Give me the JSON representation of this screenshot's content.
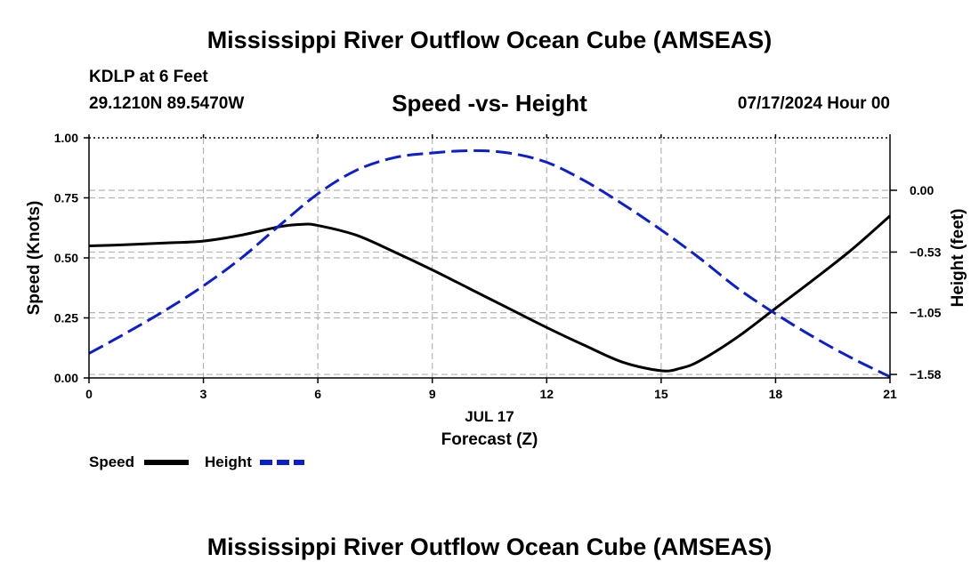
{
  "header": {
    "title": "Mississippi River Outflow Ocean Cube (AMSEAS)",
    "station": "KDLP at 6 Feet",
    "coords": "29.1210N  89.5470W",
    "subtitle": "Speed -vs- Height",
    "datetime": "07/17/2024 Hour 00",
    "bottom_title": "Mississippi River Outflow Ocean Cube (AMSEAS)"
  },
  "chart_data": {
    "type": "line",
    "title": "Speed -vs- Height",
    "xlabel": "Forecast (Z)",
    "xdate_label": "JUL 17",
    "ylabel": "Speed (Knots)",
    "y2label": "Height (feet)",
    "xlim": [
      0,
      21
    ],
    "ylim": [
      0,
      1
    ],
    "y2lim": [
      -1.61,
      0.45
    ],
    "x_ticks": [
      "0",
      "3",
      "6",
      "9",
      "12",
      "15",
      "18",
      "21"
    ],
    "y_ticks": [
      {
        "value": 0,
        "label": "0.00"
      },
      {
        "value": 0.25,
        "label": "0.25"
      },
      {
        "value": 0.5,
        "label": "0.50"
      },
      {
        "value": 0.75,
        "label": "0.75"
      },
      {
        "value": 1,
        "label": "1.00"
      }
    ],
    "y2_ticks": [
      {
        "value": 0,
        "label": "0.00"
      },
      {
        "value": -0.53,
        "label": "−0.53"
      },
      {
        "value": -1.05,
        "label": "−1.05"
      },
      {
        "value": -1.58,
        "label": "−1.58"
      }
    ],
    "grid": true,
    "series": [
      {
        "name": "Speed",
        "axis": "left",
        "color": "#000000",
        "dash": "solid",
        "x": [
          0,
          1,
          2,
          3,
          4,
          5,
          5.6,
          6,
          7,
          8,
          9,
          10,
          11,
          12,
          13,
          14,
          15,
          15.5,
          16,
          17,
          18,
          19,
          20,
          21
        ],
        "y": [
          0.55,
          0.555,
          0.562,
          0.57,
          0.595,
          0.63,
          0.64,
          0.635,
          0.595,
          0.525,
          0.45,
          0.37,
          0.29,
          0.21,
          0.135,
          0.065,
          0.03,
          0.04,
          0.07,
          0.17,
          0.29,
          0.41,
          0.535,
          0.675
        ]
      },
      {
        "name": "Height",
        "axis": "right",
        "color": "#0b1fd1",
        "dash": "dashed",
        "x": [
          0,
          1,
          2,
          3,
          4,
          5,
          6,
          7,
          8,
          9,
          10,
          11,
          12,
          13,
          14,
          15,
          16,
          17,
          18,
          19,
          20,
          21
        ],
        "y": [
          -1.4,
          -1.22,
          -1.03,
          -0.82,
          -0.58,
          -0.3,
          -0.03,
          0.17,
          0.28,
          0.32,
          0.34,
          0.32,
          0.24,
          0.08,
          -0.12,
          -0.34,
          -0.58,
          -0.84,
          -1.06,
          -1.26,
          -1.44,
          -1.6
        ]
      }
    ],
    "legend": {
      "position": "bottom-left",
      "items": [
        "Speed",
        "Height"
      ]
    }
  }
}
